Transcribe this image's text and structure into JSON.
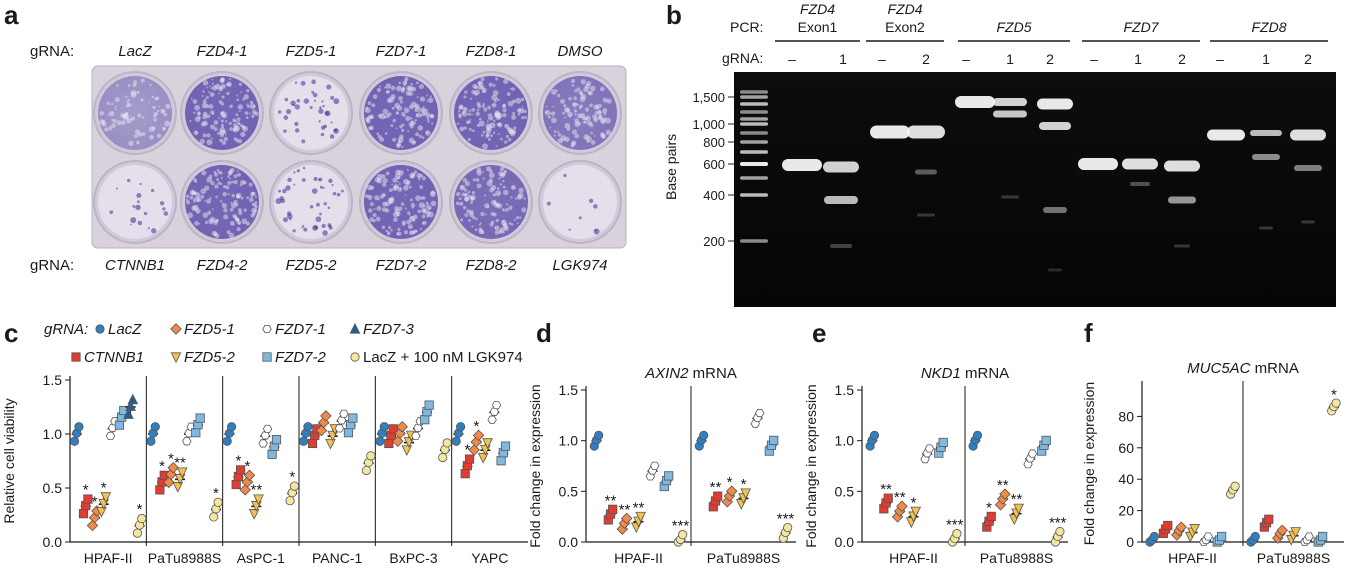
{
  "colors": {
    "LacZ": "#2f7fc1",
    "CTNNB1": "#e03c31",
    "FZD5-1": "#f08a4b",
    "FZD5-2": "#f2c14e",
    "FZD7-1": "#ffffff",
    "FZD7-2": "#7fb8e0",
    "FZD7-3": "#2a5d8f",
    "LGK974": "#f3e7a0"
  },
  "panel_a": {
    "letter": "a",
    "row_label": "gRNA:",
    "top_labels": [
      "LacZ",
      "FZD4-1",
      "FZD5-1",
      "FZD7-1",
      "FZD8-1",
      "DMSO"
    ],
    "bottom_labels": [
      "CTNNB1",
      "FZD4-2",
      "FZD5-2",
      "FZD7-2",
      "FZD8-2",
      "LGK974"
    ],
    "well_density_top": [
      0.55,
      0.95,
      0.25,
      0.95,
      0.95,
      0.8
    ],
    "well_density_bottom": [
      0.08,
      0.95,
      0.3,
      0.95,
      0.9,
      0.0
    ]
  },
  "panel_b": {
    "letter": "b",
    "pcr_label": "PCR:",
    "grna_label": "gRNA:",
    "axis_label": "Base pairs",
    "ladder_ticks": [
      "1,500",
      "1,000",
      "800",
      "600",
      "400",
      "200"
    ],
    "groups": [
      {
        "name": "FZD4",
        "sub": "Exon1",
        "lanes": [
          "–",
          "1"
        ]
      },
      {
        "name": "FZD4",
        "sub": "Exon2",
        "lanes": [
          "–",
          "2"
        ]
      },
      {
        "name": "FZD5",
        "sub": "",
        "lanes": [
          "–",
          "1",
          "2"
        ]
      },
      {
        "name": "FZD7",
        "sub": "",
        "lanes": [
          "–",
          "1",
          "2"
        ]
      },
      {
        "name": "FZD8",
        "sub": "",
        "lanes": [
          "–",
          "1",
          "2"
        ]
      }
    ]
  },
  "panel_c": {
    "letter": "c",
    "legend_title": "gRNA:",
    "legend": [
      {
        "key": "LacZ",
        "label": "LacZ",
        "shape": "circle"
      },
      {
        "key": "FZD5-1",
        "label": "FZD5-1",
        "shape": "diamond"
      },
      {
        "key": "FZD7-1",
        "label": "FZD7-1",
        "shape": "hexagon"
      },
      {
        "key": "FZD7-3",
        "label": "FZD7-3",
        "shape": "triangle-up"
      },
      {
        "key": "CTNNB1",
        "label": "CTNNB1",
        "shape": "square"
      },
      {
        "key": "FZD5-2",
        "label": "FZD5-2",
        "shape": "triangle-down"
      },
      {
        "key": "FZD7-2",
        "label": "FZD7-2",
        "shape": "square"
      },
      {
        "key": "LGK974",
        "label": "LacZ + 100 nM LGK974",
        "shape": "circle"
      }
    ]
  },
  "chart_data": [
    {
      "panel": "c",
      "type": "scatter",
      "title": "",
      "ylabel": "Relative cell viability",
      "ylim": [
        0,
        1.5
      ],
      "yticks": [
        "0.0",
        "0.5",
        "1.0",
        "1.5"
      ],
      "categories": [
        "HPAF-II",
        "PaTu8988S",
        "AsPC-1",
        "PANC-1",
        "BxPC-3",
        "YAPC"
      ],
      "series": [
        {
          "name": "LacZ",
          "values": [
            1.0,
            1.0,
            1.0,
            1.0,
            1.0,
            1.0
          ]
        },
        {
          "name": "CTNNB1",
          "values": [
            0.33,
            0.55,
            0.6,
            0.98,
            0.98,
            0.7
          ]
        },
        {
          "name": "FZD5-1",
          "values": [
            0.22,
            0.62,
            0.55,
            1.1,
            1.0,
            0.92
          ]
        },
        {
          "name": "FZD5-2",
          "values": [
            0.35,
            0.58,
            0.33,
            0.98,
            0.92,
            0.85
          ]
        },
        {
          "name": "FZD7-1",
          "values": [
            1.05,
            1.0,
            0.98,
            1.12,
            1.05,
            1.2
          ]
        },
        {
          "name": "FZD7-2",
          "values": [
            1.15,
            1.08,
            0.88,
            1.08,
            1.2,
            0.82
          ]
        },
        {
          "name": "FZD7-3",
          "values": [
            1.25,
            null,
            null,
            null,
            null,
            null
          ]
        },
        {
          "name": "LGK974",
          "values": [
            0.15,
            0.3,
            0.45,
            0.73,
            0.85,
            null
          ]
        }
      ],
      "annotations": [
        {
          "cat": 0,
          "series": "CTNNB1",
          "text": "*"
        },
        {
          "cat": 0,
          "series": "FZD5-1",
          "text": "*"
        },
        {
          "cat": 0,
          "series": "FZD5-2",
          "text": "*"
        },
        {
          "cat": 0,
          "series": "LGK974",
          "text": "*"
        },
        {
          "cat": 1,
          "series": "CTNNB1",
          "text": "*"
        },
        {
          "cat": 1,
          "series": "FZD5-1",
          "text": "*"
        },
        {
          "cat": 1,
          "series": "FZD5-2",
          "text": "**"
        },
        {
          "cat": 1,
          "series": "LGK974",
          "text": "*"
        },
        {
          "cat": 2,
          "series": "CTNNB1",
          "text": "*"
        },
        {
          "cat": 2,
          "series": "FZD5-1",
          "text": "*"
        },
        {
          "cat": 2,
          "series": "FZD5-2",
          "text": "**"
        },
        {
          "cat": 2,
          "series": "LGK974",
          "text": "*"
        },
        {
          "cat": 5,
          "series": "CTNNB1",
          "text": "*"
        },
        {
          "cat": 5,
          "series": "FZD5-1",
          "text": "*"
        }
      ]
    },
    {
      "panel": "d",
      "type": "scatter",
      "title": "AXIN2 mRNA",
      "ylabel": "Fold change in expression",
      "ylim": [
        0,
        1.5
      ],
      "yticks": [
        "0.0",
        "0.5",
        "1.0",
        "1.5"
      ],
      "categories": [
        "HPAF-II",
        "PaTu8988S"
      ],
      "series": [
        {
          "name": "LacZ",
          "values": [
            1.0,
            1.0
          ]
        },
        {
          "name": "CTNNB1",
          "values": [
            0.27,
            0.4
          ]
        },
        {
          "name": "FZD5-1",
          "values": [
            0.18,
            0.45
          ]
        },
        {
          "name": "FZD5-2",
          "values": [
            0.2,
            0.43
          ]
        },
        {
          "name": "FZD7-1",
          "values": [
            0.7,
            1.22
          ]
        },
        {
          "name": "FZD7-2",
          "values": [
            0.6,
            0.95
          ]
        },
        {
          "name": "LGK974",
          "values": [
            0.02,
            0.09
          ]
        }
      ],
      "annotations": [
        {
          "cat": 0,
          "series": "CTNNB1",
          "text": "**"
        },
        {
          "cat": 0,
          "series": "FZD5-1",
          "text": "**"
        },
        {
          "cat": 0,
          "series": "FZD5-2",
          "text": "**"
        },
        {
          "cat": 0,
          "series": "LGK974",
          "text": "***"
        },
        {
          "cat": 1,
          "series": "CTNNB1",
          "text": "**"
        },
        {
          "cat": 1,
          "series": "FZD5-1",
          "text": "*"
        },
        {
          "cat": 1,
          "series": "FZD5-2",
          "text": "*"
        },
        {
          "cat": 1,
          "series": "LGK974",
          "text": "***"
        }
      ]
    },
    {
      "panel": "e",
      "type": "scatter",
      "title": "NKD1 mRNA",
      "ylabel": "Fold change in expression",
      "ylim": [
        0,
        1.5
      ],
      "yticks": [
        "0.0",
        "0.5",
        "1.0",
        "1.5"
      ],
      "categories": [
        "HPAF-II",
        "PaTu8988S"
      ],
      "series": [
        {
          "name": "LacZ",
          "values": [
            1.0,
            1.0
          ]
        },
        {
          "name": "CTNNB1",
          "values": [
            0.38,
            0.2
          ]
        },
        {
          "name": "FZD5-1",
          "values": [
            0.3,
            0.42
          ]
        },
        {
          "name": "FZD5-2",
          "values": [
            0.25,
            0.28
          ]
        },
        {
          "name": "FZD7-1",
          "values": [
            0.87,
            0.82
          ]
        },
        {
          "name": "FZD7-2",
          "values": [
            0.93,
            0.95
          ]
        },
        {
          "name": "LGK974",
          "values": [
            0.03,
            0.05
          ]
        }
      ],
      "annotations": [
        {
          "cat": 0,
          "series": "CTNNB1",
          "text": "**"
        },
        {
          "cat": 0,
          "series": "FZD5-1",
          "text": "**"
        },
        {
          "cat": 0,
          "series": "FZD5-2",
          "text": "*"
        },
        {
          "cat": 0,
          "series": "LGK974",
          "text": "***"
        },
        {
          "cat": 1,
          "series": "CTNNB1",
          "text": "*"
        },
        {
          "cat": 1,
          "series": "FZD5-1",
          "text": "**"
        },
        {
          "cat": 1,
          "series": "FZD5-2",
          "text": "**"
        },
        {
          "cat": 1,
          "series": "LGK974",
          "text": "***"
        }
      ]
    },
    {
      "panel": "f",
      "type": "scatter",
      "title": "MUC5AC mRNA",
      "ylabel": "Fold change in expression",
      "ylim": [
        0,
        100
      ],
      "yticks": [
        "0",
        "20",
        "40",
        "60",
        "80"
      ],
      "categories": [
        "HPAF-II",
        "PaTu8988S"
      ],
      "series": [
        {
          "name": "LacZ",
          "values": [
            1,
            1
          ]
        },
        {
          "name": "CTNNB1",
          "values": [
            8,
            12
          ]
        },
        {
          "name": "FZD5-1",
          "values": [
            7,
            5
          ]
        },
        {
          "name": "FZD5-2",
          "values": [
            6,
            4
          ]
        },
        {
          "name": "FZD7-1",
          "values": [
            1,
            1
          ]
        },
        {
          "name": "FZD7-2",
          "values": [
            1,
            1
          ]
        },
        {
          "name": "LGK974",
          "values": [
            33,
            86
          ]
        }
      ],
      "annotations": [
        {
          "cat": 1,
          "series": "LGK974",
          "text": "*"
        }
      ]
    }
  ]
}
